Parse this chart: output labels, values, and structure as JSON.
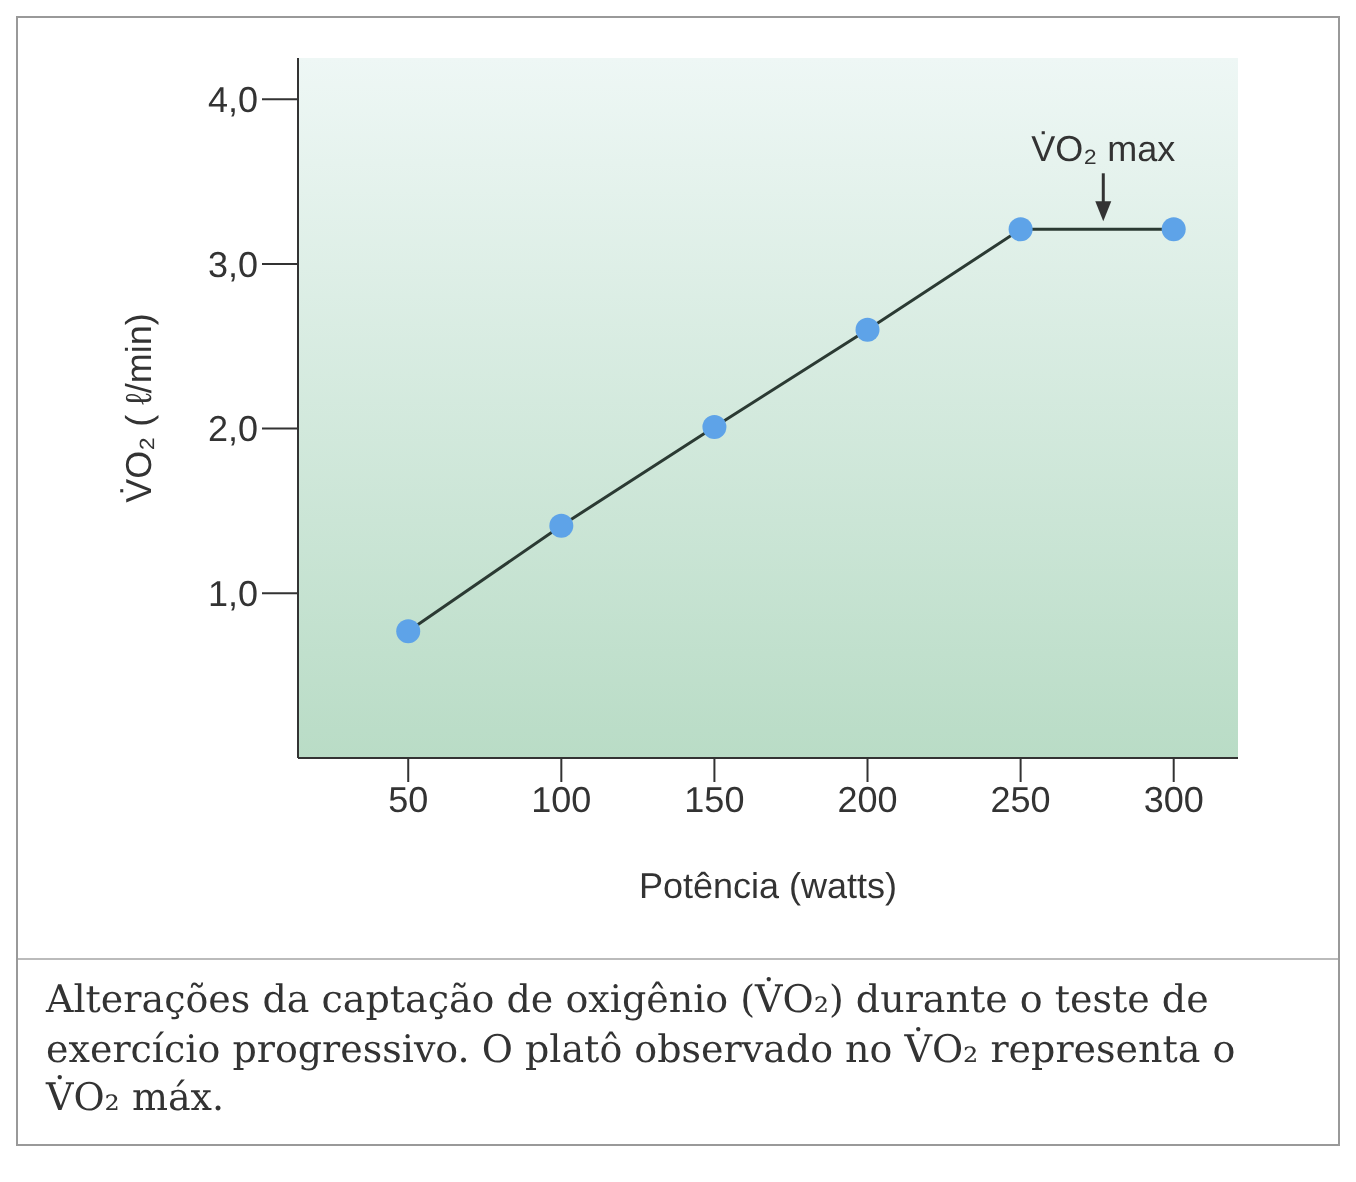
{
  "chart_data": {
    "type": "line",
    "xlabel": "Potência (watts)",
    "ylabel": "V̇O₂ ( ℓ/min)",
    "x": [
      50,
      100,
      150,
      200,
      250,
      300
    ],
    "series": [
      {
        "color": "#5ea3e8",
        "values": [
          0.77,
          1.41,
          2.01,
          2.6,
          3.21,
          3.21
        ]
      }
    ],
    "xlim": [
      14,
      321
    ],
    "xticks": [
      50,
      100,
      150,
      200,
      250,
      300
    ],
    "ylim": [
      0,
      4.25
    ],
    "yticks": [
      {
        "value": 1,
        "label": "1,0"
      },
      {
        "value": 2,
        "label": "2,0"
      },
      {
        "value": 3,
        "label": "3,0"
      },
      {
        "value": 4,
        "label": "4,0"
      }
    ],
    "grid": false,
    "marker": "circle",
    "line_style": "solid",
    "annotations": [
      {
        "text": "V̇O₂ max",
        "x": 277,
        "y": 3.21
      },
      "Alterações da captação de oxigênio (V̇O₂) durante o teste de exercício progressivo. O platô observado no V̇O₂ representa o V̇O₂ máx."
    ]
  }
}
